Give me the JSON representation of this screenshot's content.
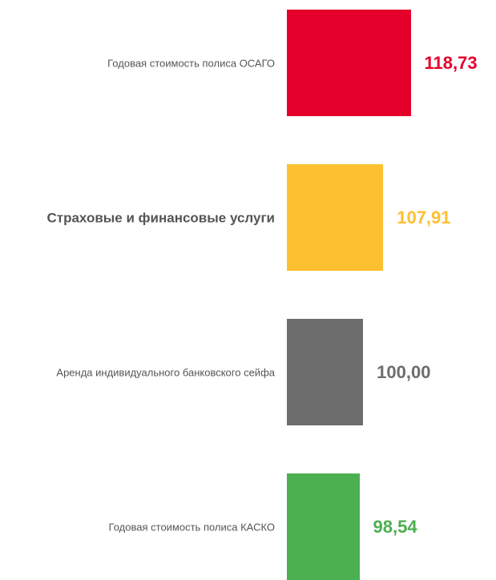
{
  "chart_data": {
    "type": "barh",
    "categories": [
      "Годовая стоимость полиса ОСАГО",
      "Страховые и финансовые услуги",
      "Аренда индивидуального банковского сейфа",
      "Годовая стоимость полиса КАСКО"
    ],
    "values": [
      118.73,
      107.91,
      100.0,
      98.54
    ],
    "value_labels": [
      "118,73",
      "107,91",
      "100,00",
      "98,54"
    ],
    "colors": [
      "#e4002b",
      "#fdc02f",
      "#6d6d6d",
      "#4caf50"
    ],
    "bold_category": 1,
    "xlim": [
      70,
      140
    ]
  }
}
